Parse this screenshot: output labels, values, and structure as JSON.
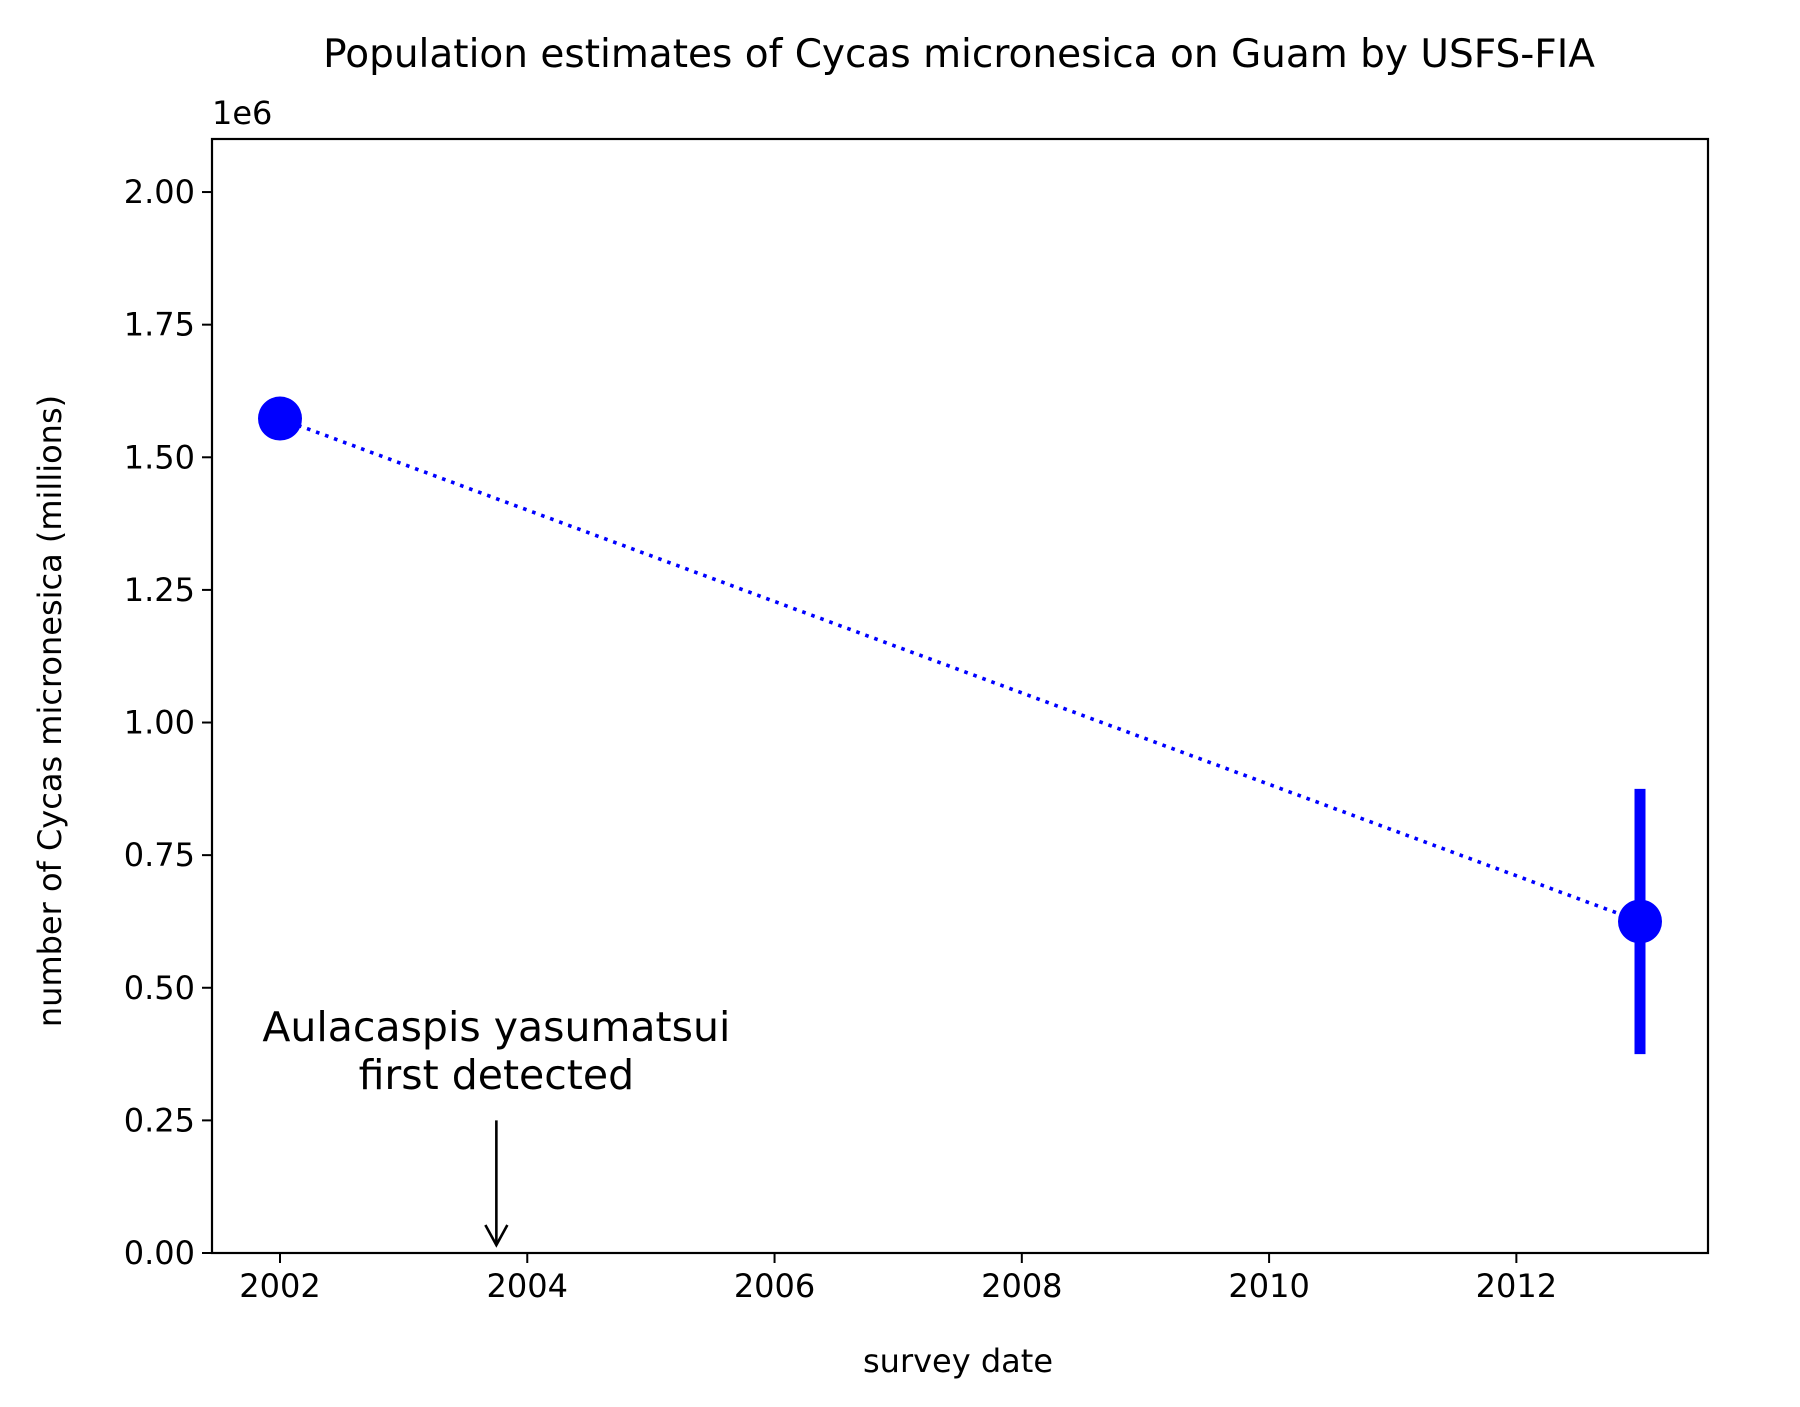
{
  "chart_data": {
    "type": "scatter",
    "title": "Population estimates of Cycas micronesica on Guam by USFS-FIA",
    "xlabel": "survey date",
    "ylabel": "number of Cycas micronesica (millions)",
    "offset_text": "1e6",
    "xlim": [
      2001.45,
      2013.55
    ],
    "ylim": [
      0,
      2100000
    ],
    "x_ticks": [
      2002,
      2004,
      2006,
      2008,
      2010,
      2012
    ],
    "x_tick_labels": [
      "2002",
      "2004",
      "2006",
      "2008",
      "2010",
      "2012"
    ],
    "y_ticks": [
      0,
      250000,
      500000,
      750000,
      1000000,
      1250000,
      1500000,
      1750000,
      2000000
    ],
    "y_tick_labels": [
      "0.00",
      "0.25",
      "0.50",
      "0.75",
      "1.00",
      "1.25",
      "1.50",
      "1.75",
      "2.00"
    ],
    "series": [
      {
        "name": "USFS-FIA estimates",
        "color": "#0000ff",
        "line_style": "dotted",
        "points": [
          {
            "x": 2002.0,
            "y": 1573000,
            "err_low": null,
            "err_high": null
          },
          {
            "x": 2013.0,
            "y": 625000,
            "err_low": 375000,
            "err_high": 875000
          }
        ]
      }
    ],
    "annotations": [
      {
        "text_lines": [
          "Aulacaspis yasumatsui",
          "first detected"
        ],
        "x": 2003.75,
        "text_y": 400000,
        "arrow_from_y": 250000,
        "arrow_to_y": 15000,
        "color": "#000000"
      }
    ]
  }
}
